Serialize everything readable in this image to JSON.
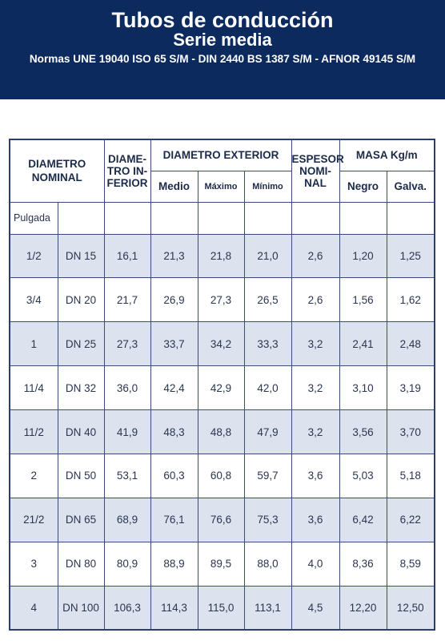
{
  "header": {
    "title": "Tubos de conducción",
    "subtitle": "Serie media",
    "standards": "Normas UNE 19040 ISO 65 S/M  - DIN 2440 BS 1387 S/M - AFNOR 49145 S/M"
  },
  "table": {
    "headers": {
      "diametro_nominal_1": "DIAMETRO",
      "diametro_nominal_2": "NOMINAL",
      "diametro_interior_1": "DIAME-",
      "diametro_interior_2": "TRO IN-",
      "diametro_interior_3": "FERIOR",
      "diametro_exterior": "DIAMETRO EXTERIOR",
      "medio": "Medio",
      "maximo": "Máximo",
      "minimo": "Mínimo",
      "espesor_1": "ESPESOR",
      "espesor_2": "NOMI-",
      "espesor_3": "NAL",
      "masa": "MASA Kg/m",
      "negro": "Negro",
      "galva": "Galva.",
      "pulgada": "Pulgada"
    },
    "rows": [
      {
        "pulgada": "1/2",
        "dn": "DN 15",
        "interior": "16,1",
        "medio": "21,3",
        "maximo": "21,8",
        "minimo": "21,0",
        "espesor": "2,6",
        "negro": "1,20",
        "galva": "1,25"
      },
      {
        "pulgada": "3/4",
        "dn": "DN 20",
        "interior": "21,7",
        "medio": "26,9",
        "maximo": "27,3",
        "minimo": "26,5",
        "espesor": "2,6",
        "negro": "1,56",
        "galva": "1,62"
      },
      {
        "pulgada": "1",
        "dn": "DN 25",
        "interior": "27,3",
        "medio": "33,7",
        "maximo": "34,2",
        "minimo": "33,3",
        "espesor": "3,2",
        "negro": "2,41",
        "galva": "2,48"
      },
      {
        "pulgada": "11/4",
        "dn": "DN 32",
        "interior": "36,0",
        "medio": "42,4",
        "maximo": "42,9",
        "minimo": "42,0",
        "espesor": "3,2",
        "negro": "3,10",
        "galva": "3,19"
      },
      {
        "pulgada": "11/2",
        "dn": "DN 40",
        "interior": "41,9",
        "medio": "48,3",
        "maximo": "48,8",
        "minimo": "47,9",
        "espesor": "3,2",
        "negro": "3,56",
        "galva": "3,70"
      },
      {
        "pulgada": "2",
        "dn": "DN 50",
        "interior": "53,1",
        "medio": "60,3",
        "maximo": "60,8",
        "minimo": "59,7",
        "espesor": "3,6",
        "negro": "5,03",
        "galva": "5,18"
      },
      {
        "pulgada": "21/2",
        "dn": "DN 65",
        "interior": "68,9",
        "medio": "76,1",
        "maximo": "76,6",
        "minimo": "75,3",
        "espesor": "3,6",
        "negro": "6,42",
        "galva": "6,22"
      },
      {
        "pulgada": "3",
        "dn": "DN 80",
        "interior": "80,9",
        "medio": "88,9",
        "maximo": "89,5",
        "minimo": "88,0",
        "espesor": "4,0",
        "negro": "8,36",
        "galva": "8,59"
      },
      {
        "pulgada": "4",
        "dn": "DN 100",
        "interior": "106,3",
        "medio": "114,3",
        "maximo": "115,0",
        "minimo": "113,1",
        "espesor": "4,5",
        "negro": "12,20",
        "galva": "12,50"
      }
    ]
  },
  "colors": {
    "banner": "#0c2a5e",
    "row_shade": "#dde3ee",
    "border": "#3a4d78"
  }
}
